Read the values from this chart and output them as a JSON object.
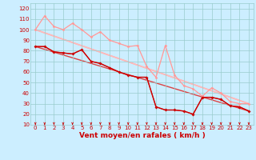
{
  "xlabel": "Vent moyen/en rafales ( km/h )",
  "bg_color": "#cceeff",
  "grid_color": "#99cccc",
  "xlim": [
    -0.5,
    23.5
  ],
  "ylim": [
    10,
    125
  ],
  "yticks": [
    10,
    20,
    30,
    40,
    50,
    60,
    70,
    80,
    90,
    100,
    110,
    120
  ],
  "xticks": [
    0,
    1,
    2,
    3,
    4,
    5,
    6,
    7,
    8,
    9,
    10,
    11,
    12,
    13,
    14,
    15,
    16,
    17,
    18,
    19,
    20,
    21,
    22,
    23
  ],
  "series": [
    {
      "name": "rafales_straight1",
      "x": [
        0,
        23
      ],
      "y": [
        100,
        30
      ],
      "color": "#ffaaaa",
      "lw": 1.2,
      "marker": null,
      "ms": 0,
      "zorder": 1
    },
    {
      "name": "rafales_straight2",
      "x": [
        0,
        23
      ],
      "y": [
        100,
        30
      ],
      "color": "#ffbbbb",
      "lw": 1.0,
      "marker": null,
      "ms": 0,
      "zorder": 1
    },
    {
      "name": "vent_straight",
      "x": [
        0,
        23
      ],
      "y": [
        84,
        23
      ],
      "color": "#dd4444",
      "lw": 1.0,
      "marker": null,
      "ms": 0,
      "zorder": 1
    },
    {
      "name": "rafales_jagged",
      "x": [
        0,
        1,
        2,
        3,
        4,
        5,
        6,
        7,
        8,
        9,
        10,
        11,
        12,
        13,
        14,
        15,
        16,
        17,
        18,
        19,
        20,
        21,
        22,
        23
      ],
      "y": [
        100,
        113,
        103,
        100,
        106,
        100,
        93,
        98,
        90,
        87,
        84,
        85,
        65,
        55,
        85,
        57,
        47,
        44,
        37,
        45,
        40,
        32,
        30,
        30
      ],
      "color": "#ff9999",
      "lw": 0.8,
      "marker": "D",
      "ms": 1.5,
      "zorder": 3
    },
    {
      "name": "rafales_jagged2",
      "x": [
        0,
        1,
        2,
        3,
        4,
        5,
        6,
        7,
        8,
        9,
        10,
        11,
        12,
        13,
        14,
        15,
        16,
        17,
        18,
        19,
        20,
        21,
        22,
        23
      ],
      "y": [
        100,
        113,
        103,
        100,
        106,
        100,
        93,
        98,
        90,
        87,
        84,
        85,
        65,
        55,
        85,
        57,
        47,
        44,
        37,
        45,
        40,
        32,
        30,
        30
      ],
      "color": "#ffbbbb",
      "lw": 0.7,
      "marker": "D",
      "ms": 1.5,
      "zorder": 2
    },
    {
      "name": "vent_jagged",
      "x": [
        0,
        1,
        2,
        3,
        4,
        5,
        6,
        7,
        8,
        9,
        10,
        11,
        12,
        13,
        14,
        15,
        16,
        17,
        18,
        19,
        20,
        21,
        22,
        23
      ],
      "y": [
        84,
        84,
        79,
        78,
        77,
        81,
        70,
        68,
        64,
        60,
        57,
        55,
        55,
        27,
        24,
        24,
        23,
        20,
        36,
        36,
        34,
        28,
        27,
        23
      ],
      "color": "#cc0000",
      "lw": 1.0,
      "marker": "D",
      "ms": 1.8,
      "zorder": 4
    },
    {
      "name": "vent_jagged2",
      "x": [
        0,
        1,
        2,
        3,
        4,
        5,
        6,
        7,
        8,
        9,
        10,
        11,
        12,
        13,
        14,
        15,
        16,
        17,
        18,
        19,
        20,
        21,
        22,
        23
      ],
      "y": [
        84,
        84,
        79,
        78,
        77,
        81,
        70,
        68,
        64,
        60,
        57,
        55,
        55,
        27,
        24,
        24,
        23,
        20,
        36,
        36,
        34,
        28,
        27,
        23
      ],
      "color": "#ee3333",
      "lw": 0.8,
      "marker": null,
      "ms": 0,
      "zorder": 3
    }
  ],
  "arrow_color": "#cc0000",
  "xlabel_color": "#cc0000",
  "tick_color": "#cc0000",
  "tick_fontsize": 5.0,
  "xlabel_fontsize": 6.5
}
